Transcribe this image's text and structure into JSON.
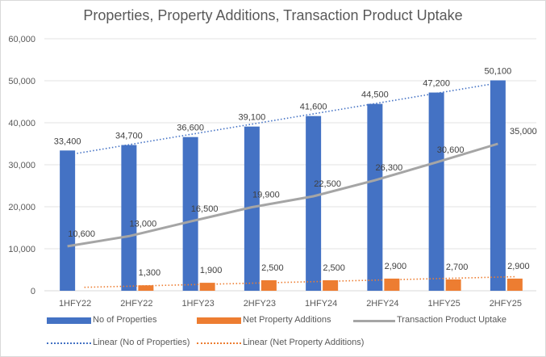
{
  "chart_data": {
    "type": "bar",
    "title": "Properties, Property Additions, Transaction Product Uptake",
    "categories": [
      "1HFY22",
      "2HFY22",
      "1HFY23",
      "2HFY23",
      "1HFY24",
      "2HFY24",
      "1HFY25",
      "2HFY25"
    ],
    "ylim": [
      0,
      60000
    ],
    "yticks": [
      "0",
      "10,000",
      "20,000",
      "30,000",
      "40,000",
      "50,000",
      "60,000"
    ],
    "ytick_values": [
      0,
      10000,
      20000,
      30000,
      40000,
      50000,
      60000
    ],
    "grid": true,
    "legend_position": "bottom",
    "series": [
      {
        "name": "No of Properties",
        "type": "bar",
        "color": "#4472c4",
        "values": [
          33400,
          34700,
          36600,
          39100,
          41600,
          44500,
          47200,
          50100
        ],
        "labels": [
          "33,400",
          "34,700",
          "36,600",
          "39,100",
          "41,600",
          "44,500",
          "47,200",
          "50,100"
        ]
      },
      {
        "name": "Net Property Additions",
        "type": "bar",
        "color": "#ed7d31",
        "values": [
          0,
          1300,
          1900,
          2500,
          2500,
          2900,
          2700,
          2900
        ],
        "labels": [
          "",
          "1,300",
          "1,900",
          "2,500",
          "2,500",
          "2,900",
          "2,700",
          "2,900"
        ]
      },
      {
        "name": "Transaction Product Uptake",
        "type": "line",
        "color": "#a5a5a5",
        "values": [
          10600,
          13000,
          16500,
          19900,
          22500,
          26300,
          30600,
          35000
        ],
        "labels": [
          "10,600",
          "13,000",
          "16,500",
          "19,900",
          "22,500",
          "26,300",
          "30,600",
          "35,000"
        ]
      }
    ],
    "trendlines": [
      {
        "name": "Linear (No of Properties)",
        "of": "No of Properties",
        "color": "#4472c4"
      },
      {
        "name": "Linear (Net Property Additions)",
        "of": "Net Property Additions",
        "color": "#ed7d31"
      }
    ]
  }
}
